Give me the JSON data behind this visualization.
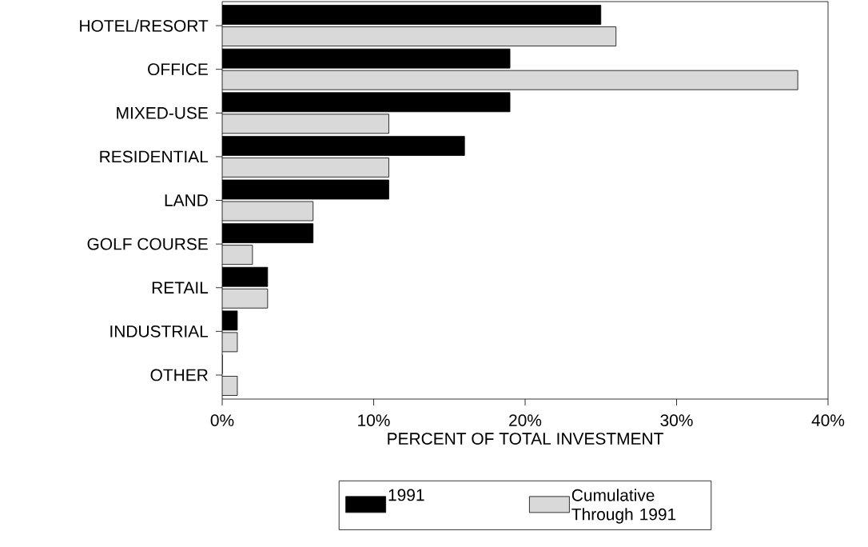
{
  "chart_data": {
    "type": "bar",
    "orientation": "horizontal",
    "xlabel": "PERCENT OF TOTAL INVESTMENT",
    "categories": [
      "HOTEL/RESORT",
      "OFFICE",
      "MIXED-USE",
      "RESIDENTIAL",
      "LAND",
      "GOLF COURSE",
      "RETAIL",
      "INDUSTRIAL",
      "OTHER"
    ],
    "series": [
      {
        "name": "1991",
        "color": "#000000",
        "values": [
          25,
          19,
          19,
          16,
          11,
          6,
          3,
          1,
          0
        ]
      },
      {
        "name": "Cumulative Through 1991",
        "color": "#d9d9d9",
        "values": [
          26,
          38,
          11,
          11,
          6,
          2,
          3,
          1,
          1
        ]
      }
    ],
    "xlim": [
      0,
      40
    ],
    "xticks": [
      {
        "value": 0,
        "label": "0%"
      },
      {
        "value": 10,
        "label": "10%"
      },
      {
        "value": 20,
        "label": "20%"
      },
      {
        "value": 30,
        "label": "30%"
      },
      {
        "value": 40,
        "label": "40%"
      }
    ],
    "grid": false,
    "legend": "bottom"
  }
}
